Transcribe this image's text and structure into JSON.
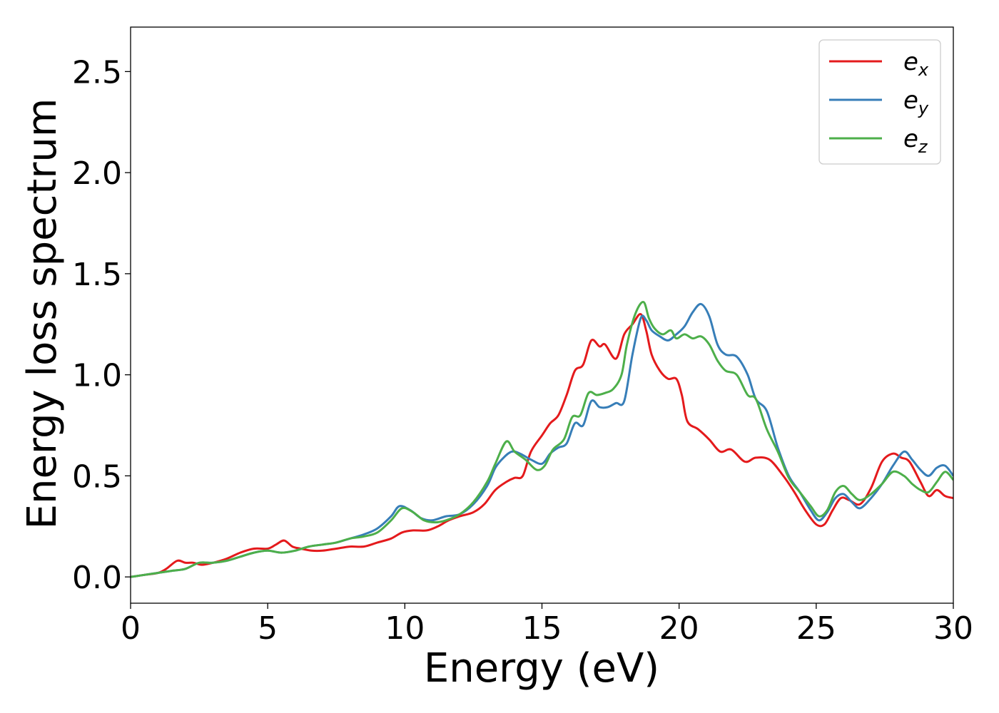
{
  "chart_data": {
    "type": "line",
    "title": "",
    "xlabel": "Energy (eV)",
    "ylabel": "Energy loss spectrum",
    "xlim": [
      0,
      30
    ],
    "ylim": [
      -0.13,
      2.72
    ],
    "xticks": [
      0,
      5,
      10,
      15,
      20,
      25,
      30
    ],
    "xtick_labels": [
      "0",
      "5",
      "10",
      "15",
      "20",
      "25",
      "30"
    ],
    "yticks": [
      0.0,
      0.5,
      1.0,
      1.5,
      2.0,
      2.5
    ],
    "ytick_labels": [
      "0.0",
      "0.5",
      "1.0",
      "1.5",
      "2.0",
      "2.5"
    ],
    "grid": false,
    "legend_position": "top-right",
    "series": [
      {
        "name": "e",
        "name_subscript": "x",
        "color": "#e41a1c",
        "x": [
          0,
          0.5,
          1,
          1.3,
          1.7,
          2,
          2.3,
          2.6,
          3,
          3.5,
          4,
          4.5,
          5,
          5.3,
          5.6,
          5.9,
          6.2,
          6.6,
          7,
          7.5,
          8,
          8.5,
          9,
          9.5,
          9.9,
          10.3,
          10.8,
          11.2,
          11.6,
          12,
          12.5,
          12.9,
          13.3,
          13.7,
          14,
          14.3,
          14.6,
          15,
          15.3,
          15.6,
          15.9,
          16.2,
          16.5,
          16.8,
          17.1,
          17.3,
          17.7,
          18,
          18.3,
          18.6,
          18.8,
          19,
          19.3,
          19.6,
          19.9,
          20.1,
          20.3,
          20.7,
          21.1,
          21.5,
          21.9,
          22.4,
          22.8,
          23.3,
          23.8,
          24.2,
          24.6,
          25,
          25.3,
          25.6,
          25.9,
          26.2,
          26.6,
          27,
          27.4,
          27.8,
          28.1,
          28.4,
          28.8,
          29.1,
          29.4,
          29.7,
          30
        ],
        "y": [
          0,
          0.01,
          0.02,
          0.04,
          0.08,
          0.07,
          0.07,
          0.06,
          0.07,
          0.09,
          0.12,
          0.14,
          0.14,
          0.16,
          0.18,
          0.15,
          0.14,
          0.13,
          0.13,
          0.14,
          0.15,
          0.15,
          0.17,
          0.19,
          0.22,
          0.23,
          0.23,
          0.25,
          0.28,
          0.3,
          0.32,
          0.36,
          0.43,
          0.47,
          0.49,
          0.5,
          0.62,
          0.7,
          0.76,
          0.8,
          0.9,
          1.02,
          1.05,
          1.17,
          1.14,
          1.15,
          1.08,
          1.2,
          1.25,
          1.3,
          1.22,
          1.1,
          1.02,
          0.98,
          0.98,
          0.9,
          0.77,
          0.73,
          0.68,
          0.62,
          0.63,
          0.57,
          0.59,
          0.58,
          0.5,
          0.42,
          0.33,
          0.26,
          0.26,
          0.33,
          0.39,
          0.38,
          0.36,
          0.44,
          0.57,
          0.61,
          0.59,
          0.57,
          0.47,
          0.4,
          0.43,
          0.4,
          0.39
        ]
      },
      {
        "name": "e",
        "name_subscript": "y",
        "color": "#377eb8",
        "x": [
          0,
          0.5,
          1,
          1.5,
          2,
          2.5,
          3,
          3.5,
          4,
          4.5,
          5,
          5.5,
          6,
          6.5,
          7,
          7.5,
          8,
          8.5,
          9,
          9.5,
          9.8,
          10.2,
          10.6,
          11,
          11.5,
          12,
          12.5,
          13,
          13.3,
          13.6,
          13.9,
          14.2,
          14.6,
          15,
          15.3,
          15.6,
          15.9,
          16.2,
          16.5,
          16.8,
          17.1,
          17.4,
          17.7,
          18,
          18.3,
          18.6,
          18.8,
          19,
          19.3,
          19.6,
          19.9,
          20.2,
          20.5,
          20.8,
          21.1,
          21.4,
          21.7,
          22.1,
          22.5,
          22.8,
          23.2,
          23.6,
          24,
          24.4,
          24.8,
          25.1,
          25.4,
          25.7,
          26,
          26.3,
          26.6,
          27,
          27.4,
          27.8,
          28.2,
          28.5,
          28.8,
          29.1,
          29.4,
          29.7,
          30
        ],
        "y": [
          0,
          0.01,
          0.02,
          0.03,
          0.04,
          0.07,
          0.07,
          0.08,
          0.1,
          0.12,
          0.13,
          0.12,
          0.13,
          0.15,
          0.16,
          0.17,
          0.19,
          0.21,
          0.24,
          0.3,
          0.35,
          0.33,
          0.29,
          0.28,
          0.3,
          0.31,
          0.36,
          0.45,
          0.54,
          0.59,
          0.62,
          0.61,
          0.58,
          0.56,
          0.61,
          0.64,
          0.66,
          0.76,
          0.75,
          0.87,
          0.84,
          0.84,
          0.86,
          0.87,
          1.1,
          1.28,
          1.27,
          1.22,
          1.19,
          1.17,
          1.2,
          1.24,
          1.31,
          1.35,
          1.29,
          1.15,
          1.1,
          1.09,
          1.0,
          0.88,
          0.82,
          0.64,
          0.5,
          0.42,
          0.33,
          0.28,
          0.32,
          0.39,
          0.41,
          0.37,
          0.34,
          0.39,
          0.46,
          0.55,
          0.62,
          0.58,
          0.53,
          0.5,
          0.54,
          0.55,
          0.5
        ]
      },
      {
        "name": "e",
        "name_subscript": "z",
        "color": "#4daf4a",
        "x": [
          0,
          0.5,
          1,
          1.5,
          2,
          2.5,
          3,
          3.5,
          4,
          4.5,
          5,
          5.5,
          6,
          6.5,
          7,
          7.5,
          8,
          8.5,
          9,
          9.5,
          9.9,
          10.3,
          10.7,
          11.1,
          11.5,
          12,
          12.5,
          13,
          13.3,
          13.7,
          14,
          14.4,
          14.8,
          15.1,
          15.4,
          15.8,
          16.1,
          16.4,
          16.7,
          17,
          17.3,
          17.6,
          17.9,
          18.1,
          18.4,
          18.7,
          18.9,
          19.1,
          19.4,
          19.7,
          19.9,
          20.2,
          20.5,
          20.8,
          21.1,
          21.4,
          21.7,
          22.1,
          22.5,
          22.8,
          23.2,
          23.6,
          24,
          24.4,
          24.8,
          25.1,
          25.4,
          25.7,
          26,
          26.3,
          26.6,
          27,
          27.4,
          27.8,
          28.2,
          28.5,
          28.8,
          29.1,
          29.4,
          29.7,
          30
        ],
        "y": [
          0,
          0.01,
          0.02,
          0.03,
          0.04,
          0.07,
          0.07,
          0.08,
          0.1,
          0.12,
          0.13,
          0.12,
          0.13,
          0.15,
          0.16,
          0.17,
          0.19,
          0.2,
          0.22,
          0.28,
          0.34,
          0.32,
          0.28,
          0.27,
          0.28,
          0.31,
          0.37,
          0.47,
          0.56,
          0.67,
          0.62,
          0.58,
          0.53,
          0.55,
          0.63,
          0.68,
          0.79,
          0.8,
          0.91,
          0.9,
          0.91,
          0.93,
          1.0,
          1.15,
          1.3,
          1.36,
          1.28,
          1.23,
          1.2,
          1.22,
          1.18,
          1.2,
          1.18,
          1.19,
          1.15,
          1.07,
          1.02,
          1.0,
          0.9,
          0.88,
          0.73,
          0.62,
          0.49,
          0.42,
          0.35,
          0.3,
          0.33,
          0.42,
          0.45,
          0.41,
          0.38,
          0.41,
          0.46,
          0.52,
          0.5,
          0.46,
          0.43,
          0.42,
          0.47,
          0.52,
          0.48
        ]
      }
    ]
  }
}
